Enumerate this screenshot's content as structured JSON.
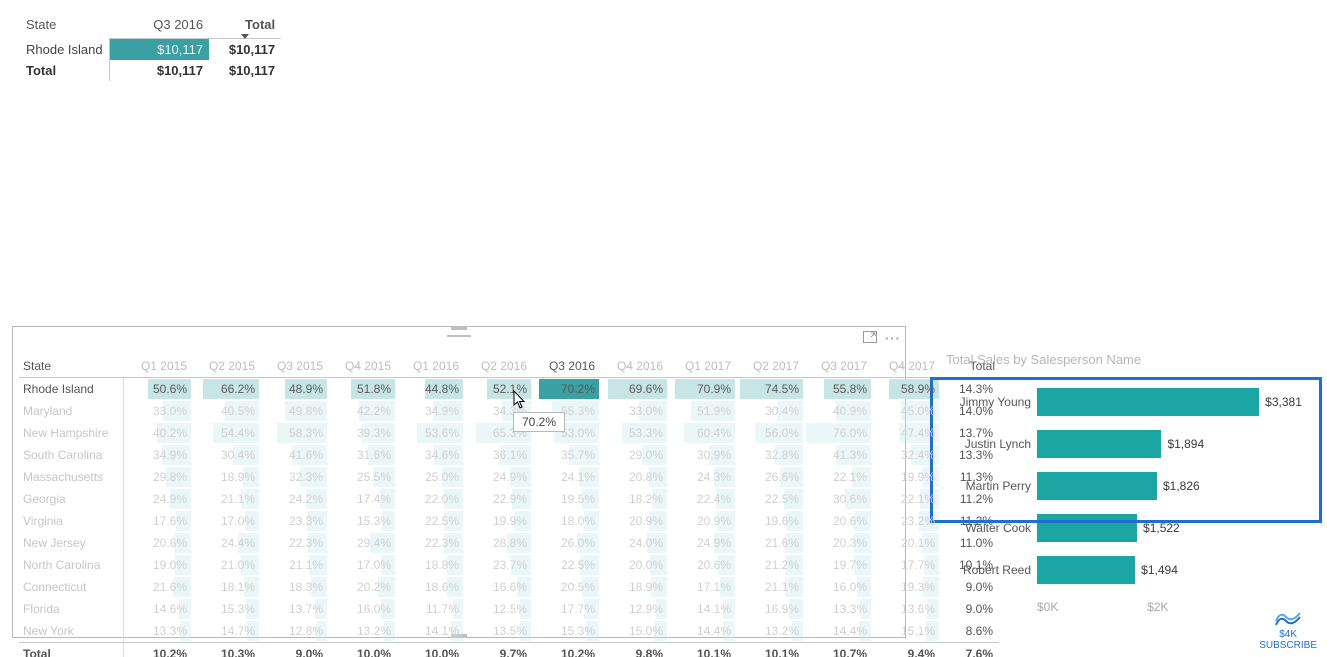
{
  "summary": {
    "headers": {
      "state": "State",
      "period": "Q3 2016",
      "total": "Total"
    },
    "row": {
      "state": "Rhode Island",
      "period_value": "$10,117",
      "total_value": "$10,117"
    },
    "total_row": {
      "label": "Total",
      "period_value": "$10,117",
      "total_value": "$10,117"
    },
    "highlight_color": "#3aa0a3"
  },
  "matrix": {
    "state_header": "State",
    "total_header": "Total",
    "periods": [
      "Q1 2015",
      "Q2 2015",
      "Q3 2015",
      "Q4 2015",
      "Q1 2016",
      "Q2 2016",
      "Q3 2016",
      "Q4 2016",
      "Q1 2017",
      "Q2 2017",
      "Q3 2017",
      "Q4 2017"
    ],
    "active_period_index": 6,
    "active_row_index": 0,
    "selected_cell": {
      "row": 0,
      "col": 6
    },
    "tooltip_value": "70.2%",
    "max_pct": 80,
    "rows": [
      {
        "state": "Rhode Island",
        "values": [
          50.6,
          66.2,
          48.9,
          51.8,
          44.8,
          52.1,
          70.2,
          69.6,
          70.9,
          74.5,
          55.8,
          58.9
        ],
        "total": "14.3%"
      },
      {
        "state": "Maryland",
        "values": [
          33.0,
          40.5,
          49.8,
          42.2,
          34.9,
          34.3,
          55.3,
          33.0,
          51.9,
          30.4,
          40.9,
          45.0
        ],
        "total": "14.0%"
      },
      {
        "state": "New Hampshire",
        "values": [
          40.2,
          54.4,
          58.3,
          39.3,
          53.6,
          65.3,
          53.0,
          53.3,
          60.4,
          56.0,
          76.0,
          47.4
        ],
        "total": "13.7%"
      },
      {
        "state": "South Carolina",
        "values": [
          34.9,
          30.4,
          41.6,
          31.6,
          34.6,
          36.1,
          35.7,
          29.0,
          30.9,
          32.8,
          41.3,
          32.4
        ],
        "total": "13.3%"
      },
      {
        "state": "Massachusetts",
        "values": [
          29.8,
          18.9,
          32.3,
          25.5,
          25.0,
          24.9,
          24.1,
          20.8,
          24.3,
          26.6,
          22.1,
          19.9
        ],
        "total": "11.3%"
      },
      {
        "state": "Georgia",
        "values": [
          24.9,
          21.1,
          24.2,
          17.4,
          22.0,
          22.9,
          19.5,
          18.2,
          22.4,
          22.5,
          30.6,
          22.1
        ],
        "total": "11.2%"
      },
      {
        "state": "Virginia",
        "values": [
          17.6,
          17.0,
          23.3,
          15.3,
          22.5,
          19.9,
          18.0,
          20.9,
          20.9,
          19.6,
          20.6,
          23.2
        ],
        "total": "11.2%"
      },
      {
        "state": "New Jersey",
        "values": [
          20.6,
          24.4,
          22.3,
          29.4,
          22.3,
          28.8,
          26.0,
          24.0,
          24.9,
          21.6,
          20.3,
          20.1
        ],
        "total": "11.0%"
      },
      {
        "state": "North Carolina",
        "values": [
          19.0,
          21.0,
          21.1,
          17.0,
          18.8,
          23.7,
          22.5,
          20.0,
          20.6,
          21.2,
          19.7,
          17.7
        ],
        "total": "10.1%"
      },
      {
        "state": "Connecticut",
        "values": [
          21.6,
          18.1,
          18.3,
          20.2,
          18.6,
          16.6,
          20.5,
          18.9,
          17.1,
          21.1,
          16.0,
          19.3
        ],
        "total": "9.0%"
      },
      {
        "state": "Florida",
        "values": [
          14.6,
          15.3,
          13.7,
          16.0,
          11.7,
          12.5,
          17.7,
          12.9,
          14.1,
          16.9,
          13.3,
          13.6
        ],
        "total": "9.0%"
      },
      {
        "state": "New York",
        "values": [
          13.3,
          14.7,
          12.8,
          13.2,
          14.1,
          13.5,
          15.3,
          15.0,
          14.4,
          13.2,
          14.4,
          15.1
        ],
        "total": "8.6%"
      }
    ],
    "grand_total": {
      "label": "Total",
      "values": [
        "10.2%",
        "10.3%",
        "9.0%",
        "10.0%",
        "10.0%",
        "9.7%",
        "10.2%",
        "9.8%",
        "10.1%",
        "10.1%",
        "10.7%",
        "9.4%"
      ],
      "total": "7.6%"
    },
    "fill_color": "#c7e5e4",
    "sel_color": "#3aa0a3"
  },
  "barChart": {
    "title": "Total Sales by Salesperson Name",
    "max": 3500,
    "bar_color": "#1ca6a3",
    "highlight_border_color": "#1f6fd0",
    "highlighted_rows": 3,
    "bars": [
      {
        "name": "Jimmy Young",
        "value": 3381,
        "label": "$3,381"
      },
      {
        "name": "Justin Lynch",
        "value": 1894,
        "label": "$1,894"
      },
      {
        "name": "Martin Perry",
        "value": 1826,
        "label": "$1,826"
      },
      {
        "name": "Walter Cook",
        "value": 1522,
        "label": "$1,522"
      },
      {
        "name": "Robert Reed",
        "value": 1494,
        "label": "$1,494"
      }
    ],
    "axis": {
      "ticks": [
        "$0K",
        "$2K"
      ]
    }
  },
  "watermark": {
    "line1": "$4K",
    "line2": "SUBSCRIBE"
  }
}
